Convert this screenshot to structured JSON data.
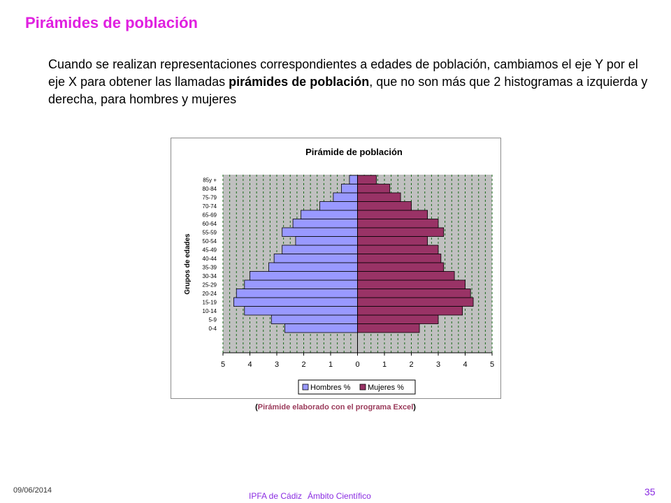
{
  "slide": {
    "title": "Pirámides de población",
    "intro_part1": "Cuando se realizan representaciones correspondientes a edades de población, cambiamos el eje Y por el eje X para obtener las llamadas ",
    "intro_bold": "pirámides de población",
    "intro_part2": ", que no son más que 2 histogramas a izquierda y derecha, para hombres y mujeres",
    "caption_open": "(",
    "caption_text": "Pirámide elaborado con el programa Excel",
    "caption_close": ")",
    "footer_date": "09/06/2014",
    "footer_org": "IPFA de Cádiz",
    "footer_area": "Ámbito Científico",
    "page_number": "35"
  },
  "chart_data": {
    "type": "bar",
    "orientation": "horizontal-population-pyramid",
    "title": "Pirámide de población",
    "ylabel": "Grupos de edades",
    "xlabel": "",
    "categories": [
      "0-4",
      "5-9",
      "10-14",
      "15-19",
      "20-24",
      "25-29",
      "30-34",
      "35-39",
      "40-44",
      "45-49",
      "50-54",
      "55-59",
      "60-64",
      "65-69",
      "70-74",
      "75-79",
      "80-84",
      "85y +"
    ],
    "series": [
      {
        "name": "Hombres %",
        "side": "left",
        "color": "#9999ff",
        "values": [
          2.7,
          3.2,
          4.2,
          4.6,
          4.5,
          4.2,
          4.0,
          3.3,
          3.1,
          2.8,
          2.3,
          2.8,
          2.4,
          2.1,
          1.4,
          0.9,
          0.6,
          0.3
        ]
      },
      {
        "name": "Mujeres %",
        "side": "right",
        "color": "#993366",
        "values": [
          2.3,
          3.0,
          3.9,
          4.3,
          4.2,
          4.0,
          3.6,
          3.2,
          3.1,
          3.0,
          2.6,
          3.2,
          3.0,
          2.6,
          2.0,
          1.6,
          1.2,
          0.7
        ]
      }
    ],
    "xlim": [
      -5,
      5
    ],
    "x_tick_labels": [
      "5",
      "4",
      "3",
      "2",
      "1",
      "0",
      "1",
      "2",
      "3",
      "4",
      "5"
    ],
    "grid": "vertical dashed",
    "legend": "bottom",
    "plot_background": "#c0c0c0"
  }
}
